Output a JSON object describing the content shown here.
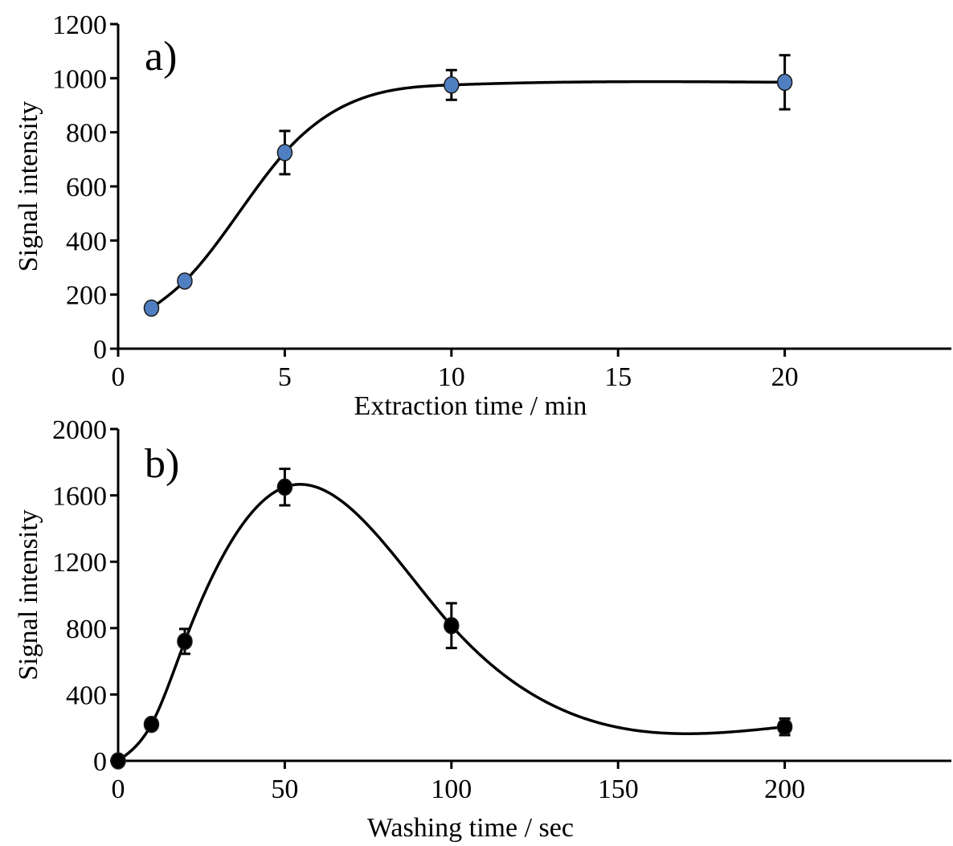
{
  "chart_data": [
    {
      "type": "line",
      "panel_label": "a)",
      "xlabel": "Extraction  time  / min",
      "ylabel": "Signal  intensity",
      "xlim": [
        0,
        25
      ],
      "ylim": [
        0,
        1200
      ],
      "x_ticks": [
        0,
        5,
        10,
        15,
        20
      ],
      "x_tick_labels": [
        "0",
        "5",
        "10",
        "15",
        "20"
      ],
      "y_ticks": [
        0,
        200,
        400,
        600,
        800,
        1000,
        1200
      ],
      "y_tick_labels": [
        "0",
        "200",
        "400",
        "600",
        "800",
        "1000",
        "1200"
      ],
      "marker_color": "#4f7fc1",
      "line_color": "#000000",
      "grid": false,
      "legend": "none",
      "series": [
        {
          "x": [
            1,
            2,
            5,
            10,
            20
          ],
          "y": [
            150,
            250,
            725,
            975,
            985
          ],
          "error": [
            0,
            0,
            80,
            55,
            100
          ]
        }
      ]
    },
    {
      "type": "line",
      "panel_label": "b)",
      "xlabel": "Washing  time  / sec",
      "ylabel": "Signal  intensity",
      "xlim": [
        0,
        250
      ],
      "ylim": [
        0,
        2000
      ],
      "x_ticks": [
        0,
        50,
        100,
        150,
        200
      ],
      "x_tick_labels": [
        "0",
        "50",
        "100",
        "150",
        "200"
      ],
      "y_ticks": [
        0,
        400,
        800,
        1200,
        1600,
        2000
      ],
      "y_tick_labels": [
        "0",
        "400",
        "800",
        "1200",
        "1600",
        "2000"
      ],
      "marker_color": "#000000",
      "line_color": "#000000",
      "grid": false,
      "legend": "none",
      "series": [
        {
          "x": [
            0,
            10,
            20,
            50,
            100,
            200
          ],
          "y": [
            0,
            220,
            720,
            1650,
            815,
            205
          ],
          "error": [
            0,
            0,
            75,
            110,
            135,
            50
          ]
        }
      ]
    }
  ]
}
